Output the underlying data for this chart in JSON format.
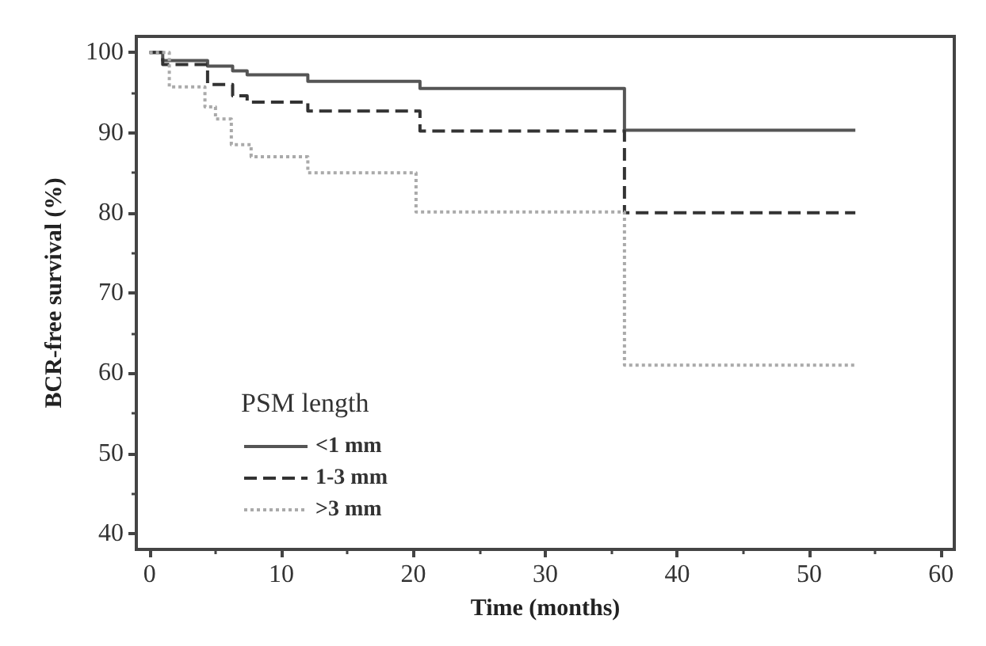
{
  "chart_data": {
    "type": "step",
    "xlabel": "Time (months)",
    "ylabel": "BCR-free survival (%)",
    "legend_title": "PSM length",
    "xlim": [
      -1,
      61
    ],
    "xticks": [
      0,
      10,
      20,
      30,
      40,
      50,
      60
    ],
    "ylim": [
      38,
      102
    ],
    "yticks": [
      40,
      50,
      60,
      70,
      80,
      90,
      100
    ],
    "grid": false,
    "legend": "bottom left",
    "marker": "none",
    "series": [
      {
        "name": "<1 mm",
        "color": "#555555",
        "line_style": "solid",
        "x": [
          0,
          1,
          4.4,
          6.3,
          7.4,
          12,
          20.5,
          36,
          53.5
        ],
        "values": [
          100,
          99,
          98.3,
          97.7,
          97.2,
          96.4,
          95.5,
          90.3,
          90.3
        ]
      },
      {
        "name": "1-3 mm",
        "color": "#333333",
        "line_style": "dashed",
        "x": [
          0,
          1,
          4.4,
          6.3,
          7.4,
          12,
          20.5,
          36,
          53.5
        ],
        "values": [
          100,
          98.5,
          96,
          94.6,
          93.8,
          92.7,
          90.2,
          80,
          80
        ]
      },
      {
        "name": ">3 mm",
        "color": "#aaaaaa",
        "line_style": "dotted",
        "x": [
          0,
          1.5,
          4.2,
          5,
          6.2,
          7.7,
          12,
          20.2,
          36,
          53.5
        ],
        "values": [
          100,
          95.7,
          93.2,
          91.7,
          88.5,
          87,
          85,
          80.1,
          61,
          61
        ]
      }
    ]
  }
}
